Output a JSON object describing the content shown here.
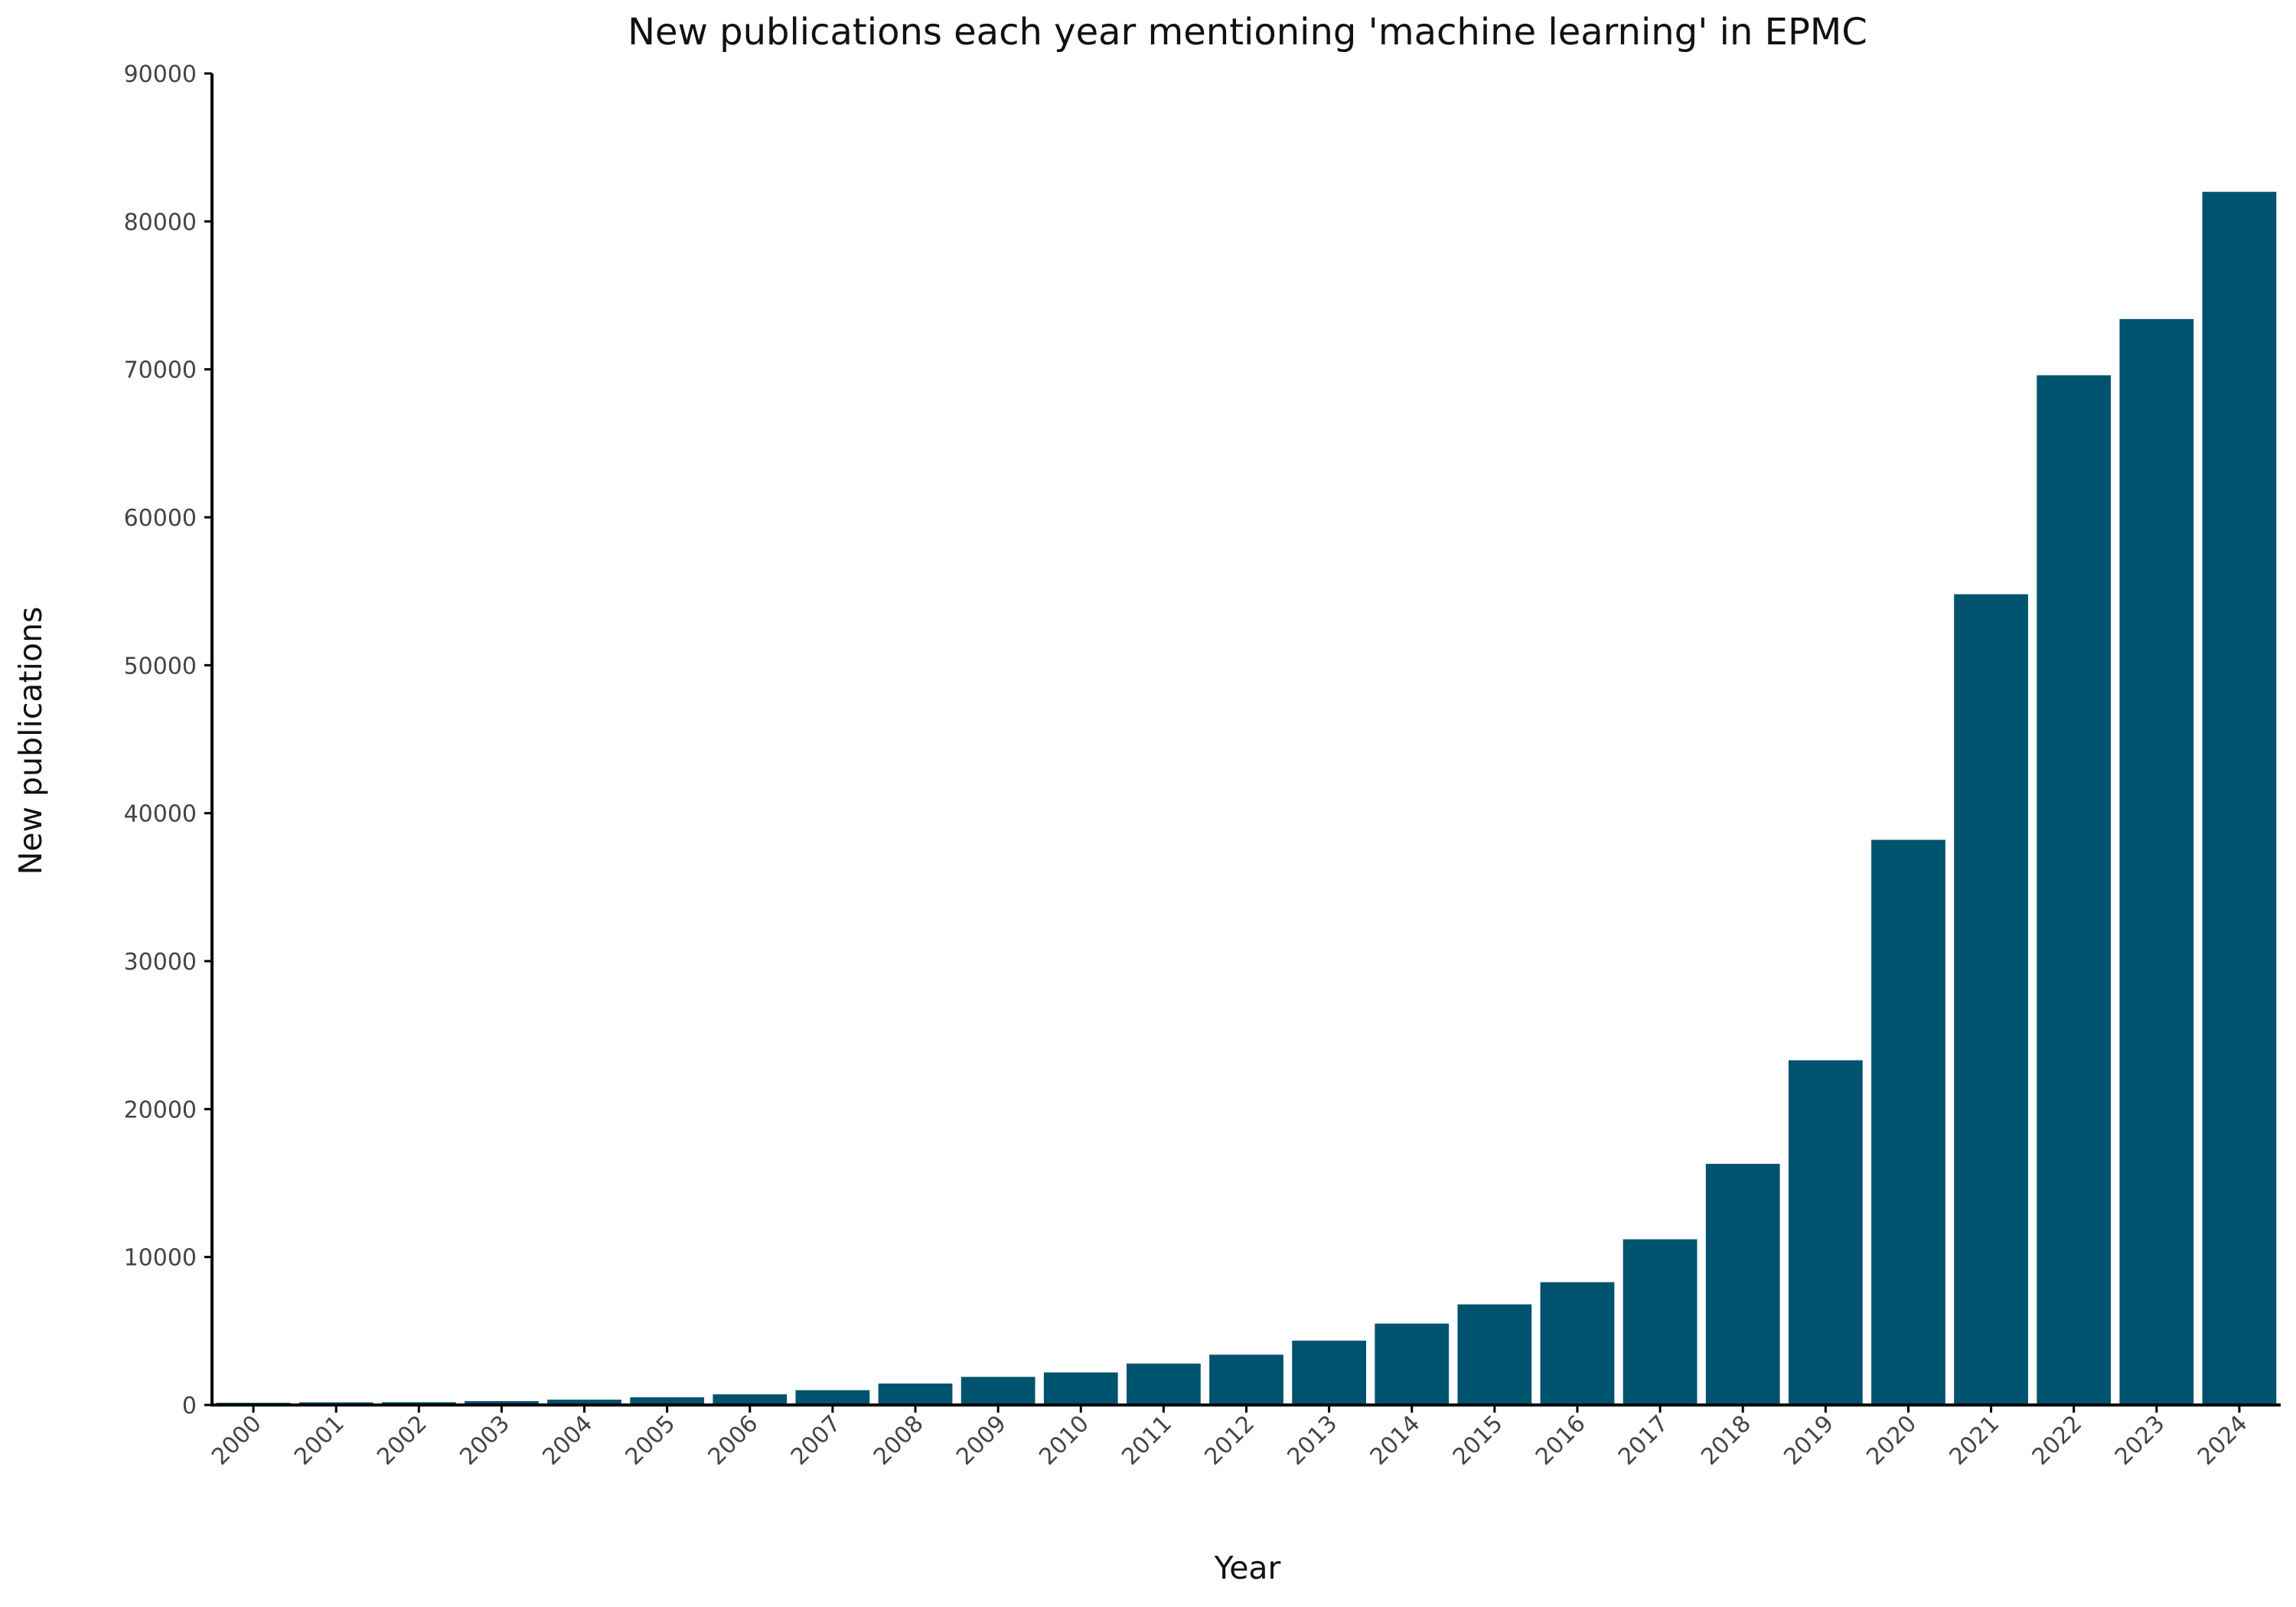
{
  "chart_data": {
    "type": "bar",
    "title": "New publications each year mentioning 'machine learning' in EPMC",
    "xlabel": "Year",
    "ylabel": "New publications",
    "ylim": [
      0,
      90000
    ],
    "yticks": [
      "0",
      "10000",
      "20000",
      "30000",
      "40000",
      "50000",
      "60000",
      "70000",
      "80000",
      "90000"
    ],
    "categories": [
      "2000",
      "2001",
      "2002",
      "2003",
      "2004",
      "2005",
      "2006",
      "2007",
      "2008",
      "2009",
      "2010",
      "2011",
      "2012",
      "2013",
      "2014",
      "2015",
      "2016",
      "2017",
      "2018",
      "2019",
      "2020",
      "2021",
      "2022",
      "2023",
      "2024"
    ],
    "values": [
      150,
      180,
      190,
      260,
      360,
      520,
      720,
      1000,
      1450,
      1900,
      2200,
      2800,
      3400,
      4350,
      5500,
      6800,
      8300,
      11200,
      16300,
      23300,
      38200,
      54800,
      69600,
      73400,
      82000
    ],
    "grid": false,
    "bar_color": "#00536f"
  }
}
